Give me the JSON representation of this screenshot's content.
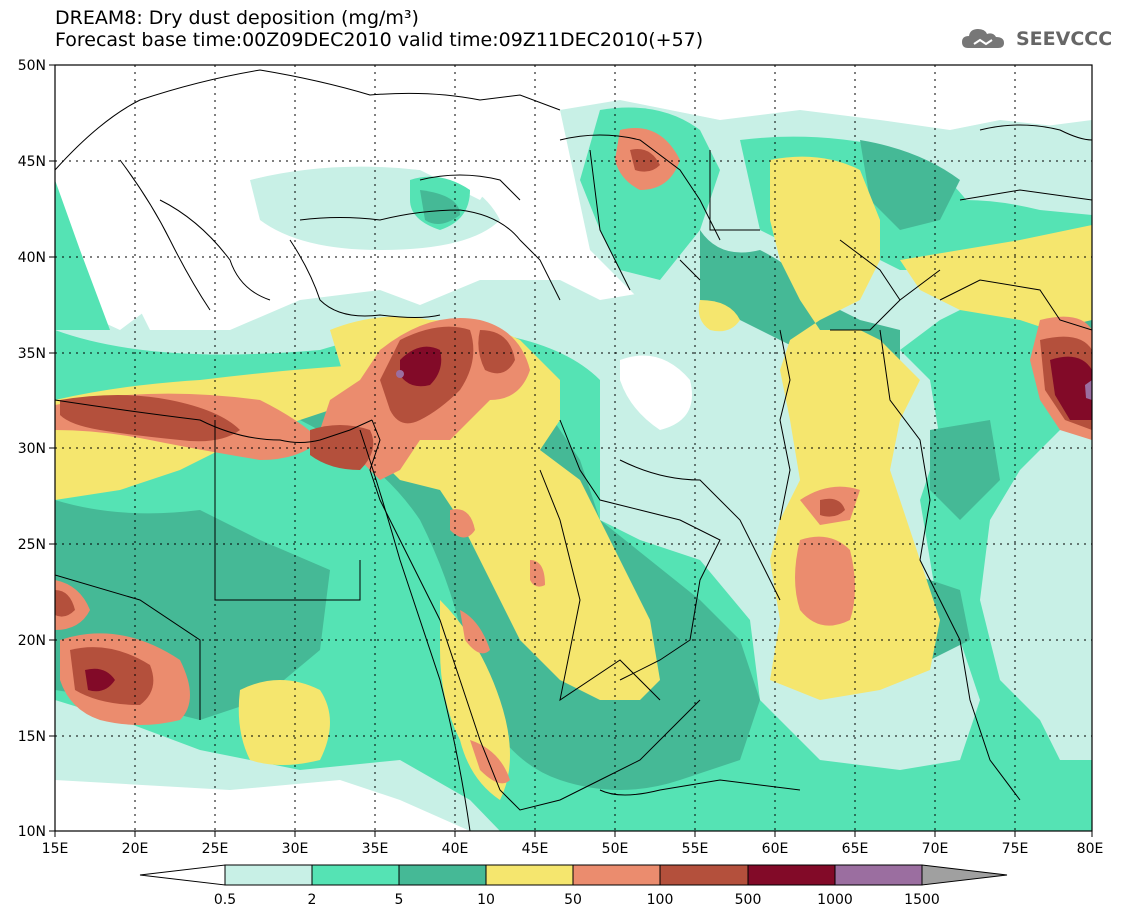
{
  "title": {
    "line1": "DREAM8: Dry dust deposition (mg/m³)",
    "line2": "Forecast base time:00Z09DEC2010 valid time:09Z11DEC2010(+57)"
  },
  "logo": {
    "icon": "cloud-logo-icon",
    "text": "SEEVCCC"
  },
  "map": {
    "lon_labels": [
      "15E",
      "20E",
      "25E",
      "30E",
      "35E",
      "40E",
      "45E",
      "50E",
      "55E",
      "60E",
      "65E",
      "70E",
      "75E",
      "80E"
    ],
    "lat_labels": [
      "50N",
      "45N",
      "40N",
      "35N",
      "30N",
      "25N",
      "20N",
      "15N",
      "10N"
    ],
    "lon_range": [
      15,
      80
    ],
    "lat_range": [
      10,
      50
    ],
    "grid": "dotted"
  },
  "legend": {
    "boundaries": [
      "0.5",
      "2",
      "5",
      "10",
      "50",
      "100",
      "500",
      "1000",
      "1500"
    ],
    "colors": [
      "#c8f0e6",
      "#55e3b4",
      "#45b996",
      "#f5e66e",
      "#eb8c6e",
      "#b4503c",
      "#820a28",
      "#9b6ea0"
    ],
    "below_color": "#ffffff",
    "above_color": "#a0a0a0"
  }
}
